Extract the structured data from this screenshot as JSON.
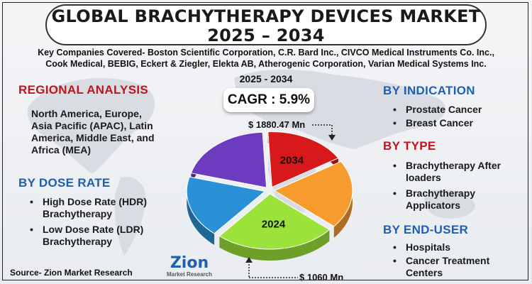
{
  "title": {
    "line1": "GLOBAL BRACHYTHERAPY DEVICES MARKET",
    "line2": "2025 – 2034"
  },
  "companies": {
    "line1": "Key Companies Covered- Boston Scientific Corporation, C.R. Bard Inc., CIVCO Medical Instruments Co. Inc.,",
    "line2": "Cook Medical, BEBIG, Eckert & Ziegler, Elekta AB, Atherogenic Corporation, Varian Medical Systems Inc."
  },
  "cagr": {
    "years": "2025 - 2034",
    "label": "CAGR : 5.9%"
  },
  "regional": {
    "heading": "REGIONAL ANALYSIS",
    "line1": "North America, Europe,",
    "line2": "Asia Pacific (APAC), Latin",
    "line3": "America, Middle East, and",
    "line4": "Africa (MEA)"
  },
  "dose_rate": {
    "heading": "BY DOSE RATE",
    "items": [
      {
        "line1": "High Dose Rate (HDR)",
        "line2": "Brachytherapy"
      },
      {
        "line1": "Low Dose Rate (LDR)",
        "line2": "Brachytherapy"
      }
    ]
  },
  "indication": {
    "heading": "BY INDICATION",
    "items": [
      "Prostate Cancer",
      "Breast Cancer"
    ]
  },
  "type": {
    "heading": "BY TYPE",
    "items": [
      {
        "line1": "Brachytherapy After",
        "line2": "loaders"
      },
      {
        "line1": "Brachytherapy",
        "line2": "Applicators"
      }
    ]
  },
  "end_user": {
    "heading": "BY END-USER",
    "items": [
      {
        "line1": "Hospitals",
        "line2": ""
      },
      {
        "line1": "Cancer Treatment",
        "line2": "Centers"
      }
    ]
  },
  "source": "Source- Zion Market Research",
  "logo": {
    "main": "Zion",
    "sub": "Market Research"
  },
  "bullet_glyph": "•",
  "chart_data": {
    "type": "pie",
    "title": "",
    "labels": [
      "2034",
      "",
      "2024",
      "",
      ""
    ],
    "values": [
      17,
      20,
      25,
      18,
      20
    ],
    "colors": [
      "#d7191c",
      "#f79b2e",
      "#9be33a",
      "#2a91d6",
      "#6d3bbf"
    ],
    "annotations": [
      {
        "text": "$ 1880.47 Mn",
        "year": "2034"
      },
      {
        "text": "$ 1060 Mn",
        "year": "2024"
      }
    ]
  }
}
